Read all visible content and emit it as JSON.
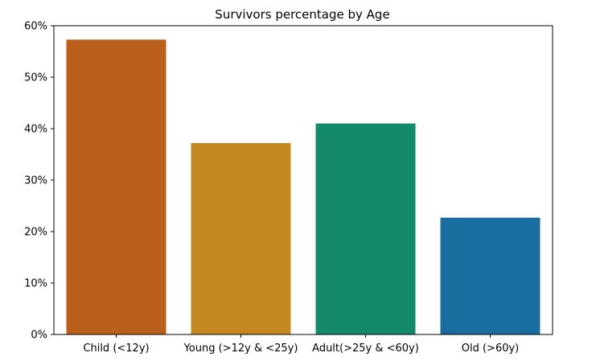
{
  "chart_data": {
    "type": "bar",
    "title": "Survivors percentage by Age",
    "xlabel": "",
    "ylabel": "",
    "categories": [
      "Child (<12y)",
      "Young (>12y & <25y)",
      "Adult(>25y & <60y)",
      "Old (>60y)"
    ],
    "values": [
      57.3,
      37.2,
      41.0,
      22.7
    ],
    "colors": [
      "#bb5f1d",
      "#c3881f",
      "#138a6a",
      "#1a6da0"
    ],
    "ylim": [
      0,
      60
    ],
    "yticks": [
      {
        "value": 0,
        "label": "0%"
      },
      {
        "value": 10,
        "label": "10%"
      },
      {
        "value": 20,
        "label": "20%"
      },
      {
        "value": 30,
        "label": "30%"
      },
      {
        "value": 40,
        "label": "40%"
      },
      {
        "value": 50,
        "label": "50%"
      },
      {
        "value": 60,
        "label": "60%"
      }
    ],
    "grid": false,
    "legend": "none"
  }
}
